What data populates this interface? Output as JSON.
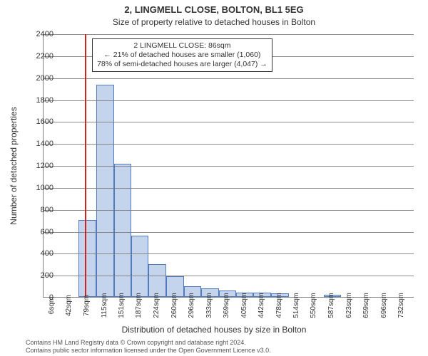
{
  "title_main": "2, LINGMELL CLOSE, BOLTON, BL1 5EG",
  "title_sub": "Size of property relative to detached houses in Bolton",
  "y_axis_label": "Number of detached properties",
  "x_axis_label": "Distribution of detached houses by size in Bolton",
  "footer_line1": "Contains HM Land Registry data © Crown copyright and database right 2024.",
  "footer_line2": "Contains public sector information licensed under the Open Government Licence v3.0.",
  "annotation": {
    "line1": "2 LINGMELL CLOSE: 86sqm",
    "line2": "← 21% of detached houses are smaller (1,060)",
    "line3": "78% of semi-detached houses are larger (4,047) →"
  },
  "chart": {
    "type": "histogram",
    "background_color": "#ffffff",
    "grid_color": "#808080",
    "bar_fill": "rgba(147,177,222,0.55)",
    "bar_border": "#517bbf",
    "marker_color": "#cc2222",
    "marker_x": 86,
    "title_fontsize": 13,
    "subtitle_fontsize": 12,
    "axis_label_fontsize": 12,
    "tick_fontsize": 11,
    "x_tick_fontsize": 10,
    "xlim": [
      0,
      770
    ],
    "ylim": [
      0,
      2400
    ],
    "ytick_step": 200,
    "x_ticks": [
      6,
      42,
      79,
      115,
      151,
      187,
      224,
      260,
      296,
      333,
      369,
      405,
      442,
      478,
      514,
      550,
      587,
      623,
      659,
      696,
      732
    ],
    "x_tick_suffix": "sqm",
    "bin_edges": [
      0,
      36,
      73,
      109,
      146,
      182,
      218,
      255,
      291,
      327,
      364,
      400,
      436,
      473,
      509,
      545,
      582,
      618,
      654,
      691,
      727,
      770
    ],
    "counts": [
      0,
      0,
      700,
      1930,
      1210,
      560,
      300,
      190,
      100,
      80,
      60,
      40,
      40,
      30,
      0,
      0,
      20,
      0,
      0,
      0,
      0
    ]
  }
}
